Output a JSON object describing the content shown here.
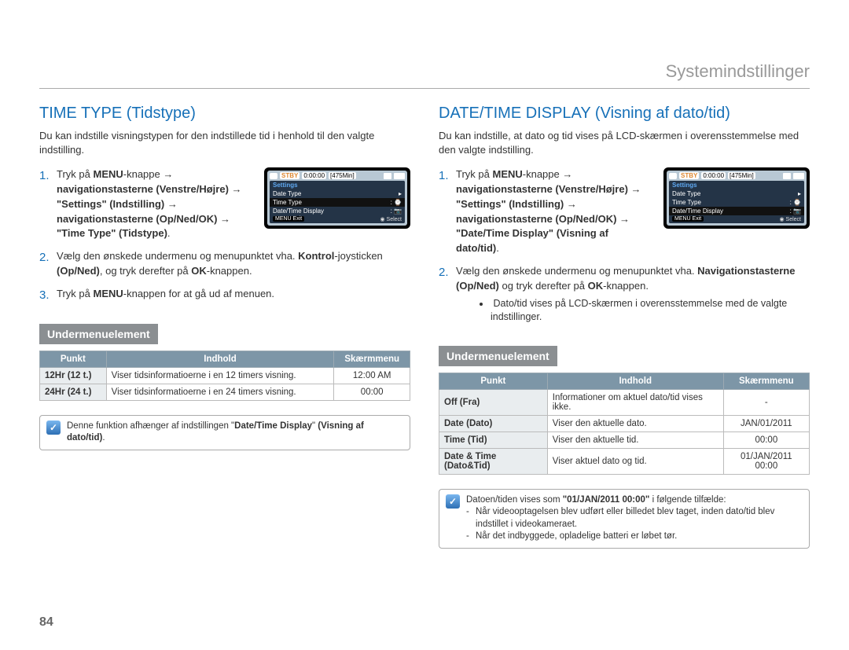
{
  "page_header": "Systemindstillinger",
  "page_number": "84",
  "left": {
    "title": "TIME TYPE (Tidstype)",
    "intro": "Du kan indstille visningstypen for den indstillede tid i henhold til den valgte indstilling.",
    "step1_pre": "Tryk på ",
    "step1_menu": "MENU",
    "step1_post": "-knappe → ",
    "step1_b1": "navigationstasterne (Venstre/Højre) → \"Settings\" (Indstilling) → navigationstasterne (Op/Ned/OK) → \"Time Type\" (Tidstype)",
    "step1_end": ".",
    "step2_a": "Vælg den ønskede undermenu og menupunktet vha. ",
    "step2_b": "Kontrol",
    "step2_c": "-joysticken ",
    "step2_d": "(Op/Ned)",
    "step2_e": ", og tryk derefter på ",
    "step2_f": "OK",
    "step2_g": "-knappen.",
    "step3_a": "Tryk på ",
    "step3_b": "MENU",
    "step3_c": "-knappen for at gå ud af menuen.",
    "sub_header": "Undermenuelement",
    "lcd": {
      "stby": "STBY",
      "time": "0:00:00",
      "remaining": "[475Min]",
      "menu_title": "Settings",
      "row1": "Date Type",
      "row2": "Time Type",
      "row3": "Date/Time Display",
      "foot_exit": "MENU Exit",
      "foot_select": "Select"
    },
    "table": {
      "h1": "Punkt",
      "h2": "Indhold",
      "h3": "Skærmmenu",
      "r1c1": "12Hr (12 t.)",
      "r1c2": "Viser tidsinformatioerne i en 12 timers visning.",
      "r1c3": "12:00 AM",
      "r2c1": "24Hr (24 t.)",
      "r2c2": "Viser tidsinformatioerne i en 24 timers visning.",
      "r2c3": "00:00"
    },
    "note_a": "Denne funktion afhænger af indstillingen \"",
    "note_b": "Date/Time Display",
    "note_c": "\" ",
    "note_d": "(Visning af dato/tid)",
    "note_e": "."
  },
  "right": {
    "title": "DATE/TIME DISPLAY (Visning af dato/tid)",
    "intro": "Du kan indstille, at dato og tid vises på LCD-skærmen i overensstemmelse med den valgte indstilling.",
    "step1_pre": "Tryk på ",
    "step1_menu": "MENU",
    "step1_post": "-knappe → ",
    "step1_b1": "navigationstasterne (Venstre/Højre) → \"Settings\" (Indstilling) → navigationstasterne (Op/Ned/OK) → \"Date/Time Display\" (Visning af dato/tid)",
    "step1_end": ".",
    "step2_a": "Vælg den ønskede undermenu og menupunktet vha. ",
    "step2_b": "Navigationstasterne (Op/Ned)",
    "step2_c": " og tryk derefter på ",
    "step2_d": "OK",
    "step2_e": "-knappen.",
    "step2_sub": "Dato/tid vises på LCD-skærmen i overensstemmelse med de valgte indstillinger.",
    "sub_header": "Undermenuelement",
    "lcd": {
      "stby": "STBY",
      "time": "0:00:00",
      "remaining": "[475Min]",
      "menu_title": "Settings",
      "row1": "Date Type",
      "row2": "Time Type",
      "row3": "Date/Time Display",
      "foot_exit": "MENU Exit",
      "foot_select": "Select"
    },
    "table": {
      "h1": "Punkt",
      "h2": "Indhold",
      "h3": "Skærmmenu",
      "r1c1": "Off (Fra)",
      "r1c2": "Informationer om aktuel dato/tid vises ikke.",
      "r1c3": "-",
      "r2c1": "Date (Dato)",
      "r2c2": "Viser den aktuelle dato.",
      "r2c3": "JAN/01/2011",
      "r3c1": "Time (Tid)",
      "r3c2": "Viser den aktuelle tid.",
      "r3c3": "00:00",
      "r4c1": "Date & Time (Dato&Tid)",
      "r4c2": "Viser aktuel dato og tid.",
      "r4c3": "01/JAN/2011 00:00"
    },
    "note_lead_a": "Datoen/tiden vises som ",
    "note_lead_b": "\"01/JAN/2011 00:00\"",
    "note_lead_c": " i følgende tilfælde:",
    "note_li1": "Når videooptagelsen blev udført eller billedet blev taget, inden dato/tid blev indstillet i videokameraet.",
    "note_li2": "Når det indbyggede, opladelige batteri er løbet tør."
  }
}
